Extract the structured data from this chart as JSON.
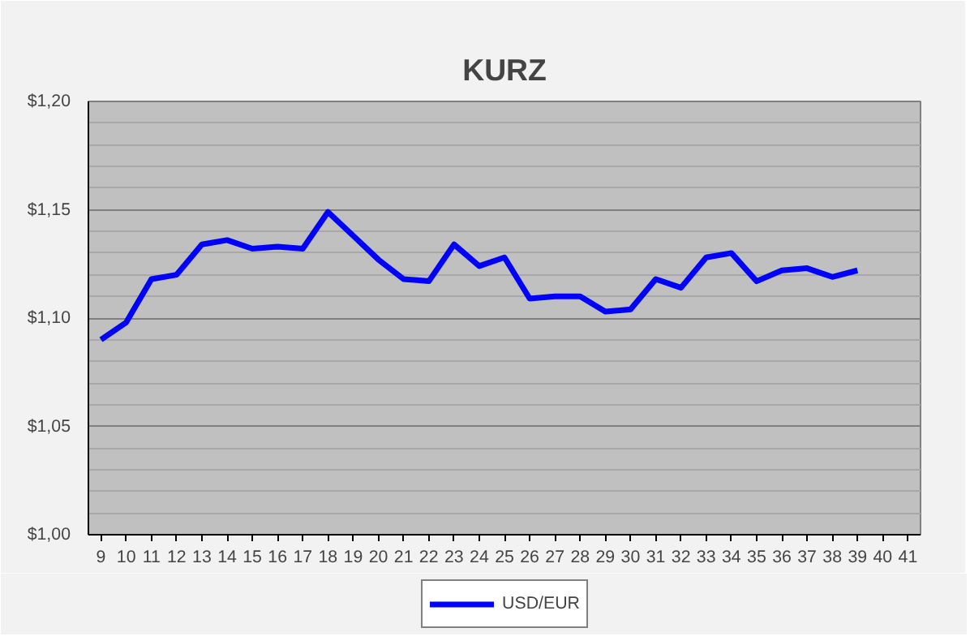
{
  "chart_data": {
    "type": "line",
    "title": "KURZ",
    "categories": [
      "9",
      "10",
      "11",
      "12",
      "13",
      "14",
      "15",
      "16",
      "17",
      "18",
      "19",
      "20",
      "21",
      "22",
      "23",
      "24",
      "25",
      "26",
      "27",
      "28",
      "29",
      "30",
      "31",
      "32",
      "33",
      "34",
      "35",
      "36",
      "37",
      "38",
      "39",
      "40",
      "41"
    ],
    "series": [
      {
        "name": "USD/EUR",
        "color": "#0000ff",
        "values": [
          1.09,
          1.098,
          1.118,
          1.12,
          1.134,
          1.136,
          1.132,
          1.133,
          1.132,
          1.149,
          1.138,
          1.127,
          1.118,
          1.117,
          1.134,
          1.124,
          1.128,
          1.109,
          1.11,
          1.11,
          1.103,
          1.104,
          1.118,
          1.114,
          1.128,
          1.13,
          1.117,
          1.122,
          1.123,
          1.119,
          1.122,
          null,
          null
        ]
      }
    ],
    "ylim": [
      1.0,
      1.2
    ],
    "yticks": [
      {
        "value": 1.0,
        "label": "$1,00"
      },
      {
        "value": 1.05,
        "label": "$1,05"
      },
      {
        "value": 1.1,
        "label": "$1,10"
      },
      {
        "value": 1.15,
        "label": "$1,15"
      },
      {
        "value": 1.2,
        "label": "$1,20"
      }
    ],
    "grid": "y",
    "legend": "bottom",
    "marker": "none",
    "line_style": "solid"
  }
}
